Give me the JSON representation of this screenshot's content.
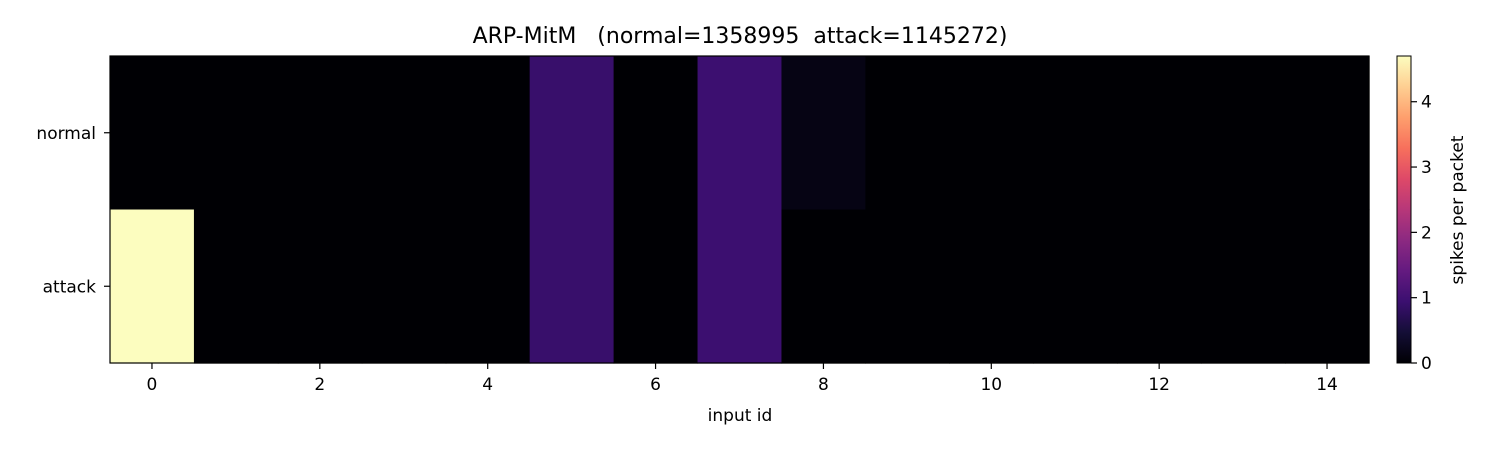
{
  "chart_data": {
    "type": "heatmap",
    "title": "ARP-MitM   (normal=1358995  attack=1145272)",
    "xlabel": "input id",
    "ylabel": "",
    "x": [
      0,
      1,
      2,
      3,
      4,
      5,
      6,
      7,
      8,
      9,
      10,
      11,
      12,
      13,
      14
    ],
    "x_ticks": [
      0,
      2,
      4,
      6,
      8,
      10,
      12,
      14
    ],
    "xlim": [
      -0.5,
      14.5
    ],
    "rows": [
      "normal",
      "attack"
    ],
    "values": [
      [
        0,
        0,
        0,
        0,
        0,
        0.9,
        0,
        0.95,
        0.15,
        0,
        0,
        0,
        0,
        0,
        0
      ],
      [
        4.7,
        0,
        0,
        0,
        0,
        0.9,
        0,
        0.95,
        0,
        0,
        0,
        0,
        0,
        0,
        0
      ]
    ],
    "colormap": "magma",
    "colorbar": {
      "label": "spikes per packet",
      "range": [
        0,
        4.7
      ],
      "ticks": [
        0,
        1,
        2,
        3,
        4
      ]
    },
    "grid": false,
    "legend": "none"
  }
}
